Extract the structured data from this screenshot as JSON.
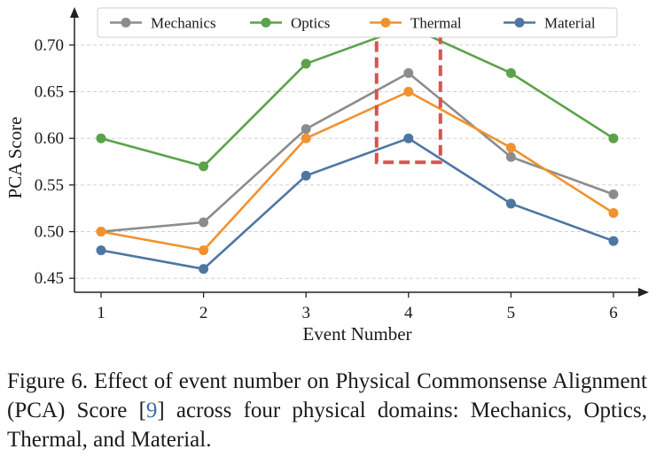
{
  "chart_data": {
    "type": "line",
    "title": "",
    "xlabel": "Event Number",
    "ylabel": "PCA Score",
    "x": [
      1,
      2,
      3,
      4,
      5,
      6
    ],
    "xticks": [
      "1",
      "2",
      "3",
      "4",
      "5",
      "6"
    ],
    "yticks": [
      "0.45",
      "0.50",
      "0.55",
      "0.60",
      "0.65",
      "0.70"
    ],
    "ylim": [
      0.435,
      0.735
    ],
    "grid": "horizontal dashed",
    "legend_position": "top",
    "series": [
      {
        "name": "Mechanics",
        "color": "#8c8c8c",
        "values": [
          0.5,
          0.51,
          0.61,
          0.67,
          0.58,
          0.54
        ]
      },
      {
        "name": "Optics",
        "color": "#5aa34a",
        "values": [
          0.6,
          0.57,
          0.68,
          0.72,
          0.67,
          0.6
        ]
      },
      {
        "name": "Thermal",
        "color": "#f0922e",
        "values": [
          0.5,
          0.48,
          0.6,
          0.65,
          0.59,
          0.52
        ]
      },
      {
        "name": "Material",
        "color": "#4e76a3",
        "values": [
          0.48,
          0.46,
          0.56,
          0.6,
          0.53,
          0.49
        ]
      }
    ],
    "highlight": {
      "x": 4,
      "style": "dashed red box",
      "color": "#d9534f"
    }
  },
  "caption": {
    "prefix": "Figure 6.  Effect of event number on Physical Commonsense Alignment (PCA) Score [",
    "ref": "9",
    "suffix": "] across four physical domains: Mechanics, Optics, Thermal, and Material."
  }
}
